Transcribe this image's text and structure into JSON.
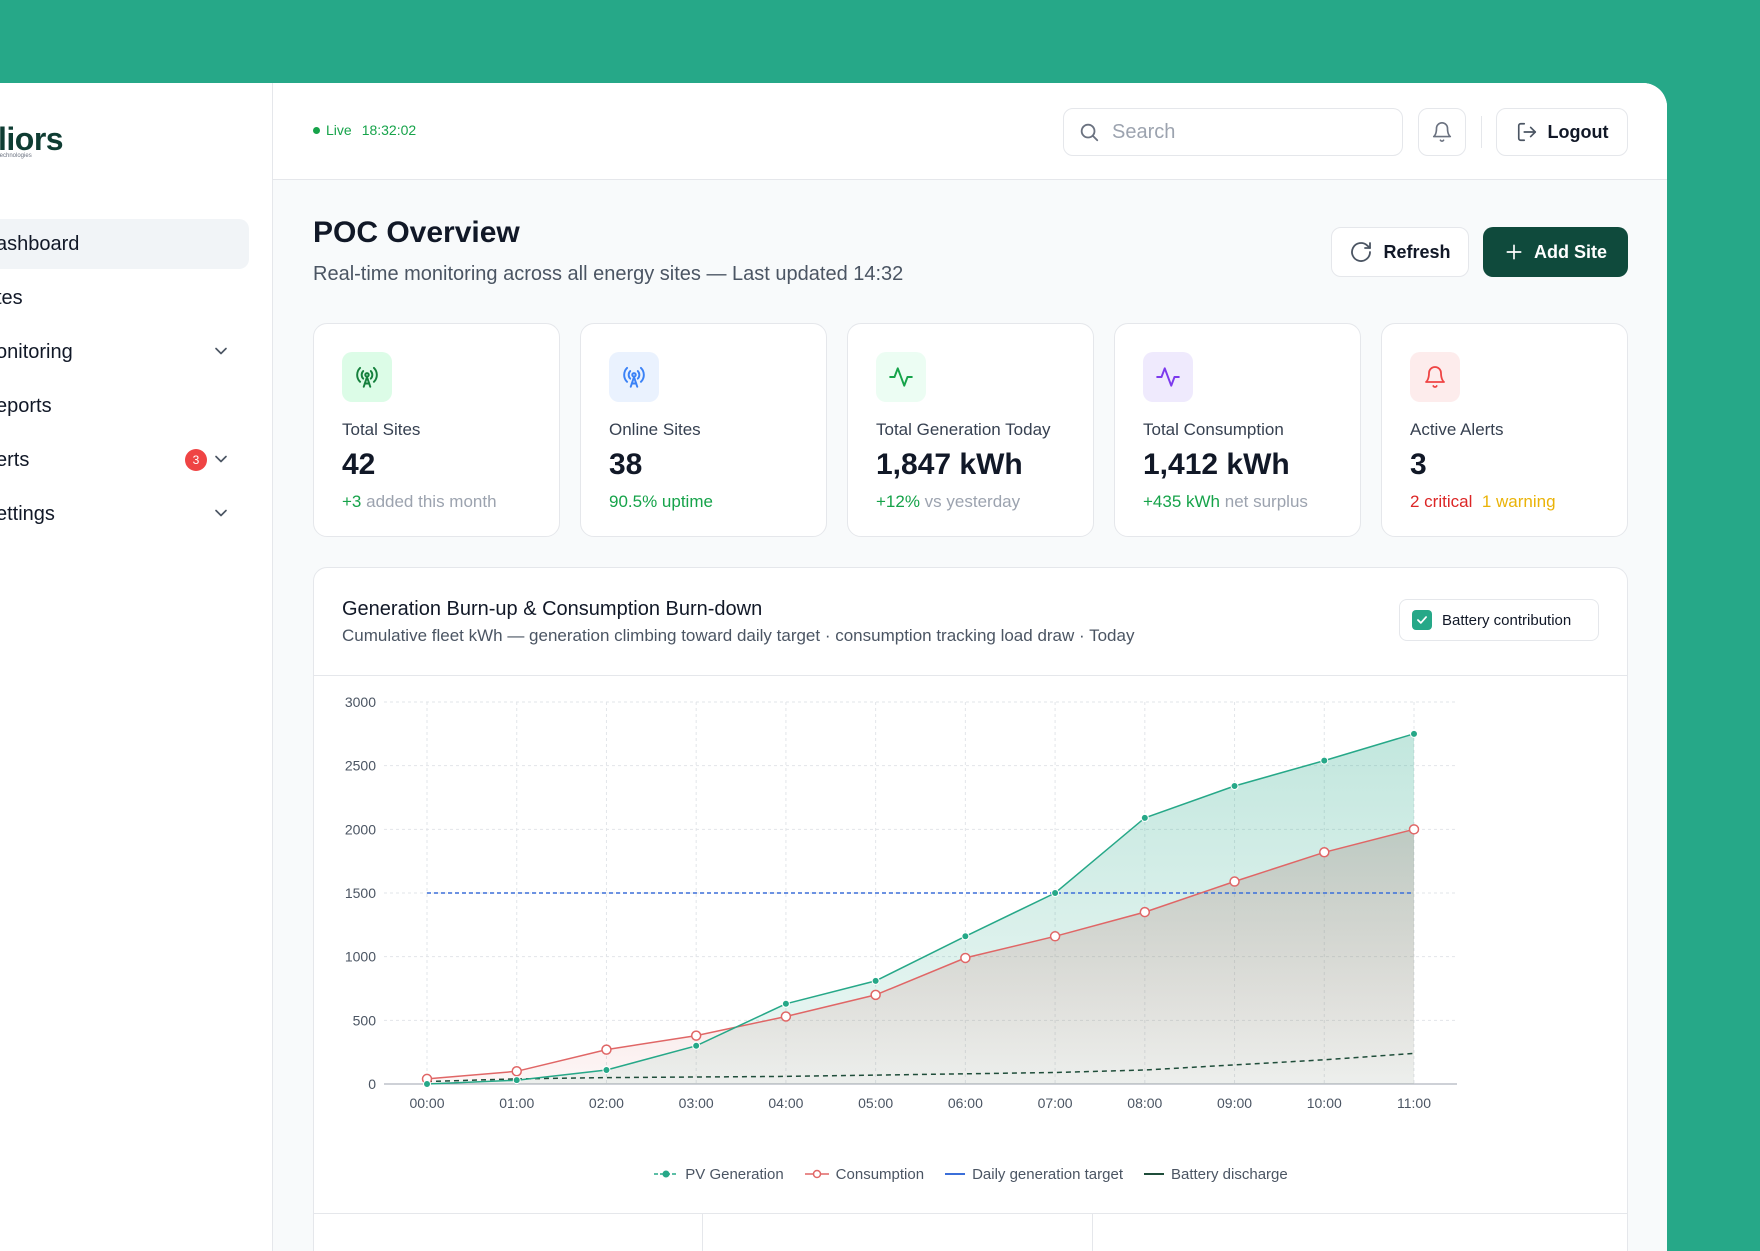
{
  "app": {
    "logo_text": "liors",
    "logo_sub": "technologies"
  },
  "sidebar": {
    "items": [
      {
        "label": "ashboard",
        "active": true
      },
      {
        "label": "tes"
      },
      {
        "label": "onitoring",
        "has_chevron": true
      },
      {
        "label": "eports"
      },
      {
        "label": "erts",
        "has_chevron": true,
        "badge": "3"
      },
      {
        "label": "ettings",
        "has_chevron": true
      }
    ]
  },
  "topbar": {
    "live_label": "Live",
    "live_time": "18:32:02",
    "search_placeholder": "Search",
    "logout_label": "Logout"
  },
  "header": {
    "title": "POC Overview",
    "subtitle": "Real-time monitoring across all energy sites — Last updated 14:32",
    "refresh_label": "Refresh",
    "add_site_label": "Add Site"
  },
  "cards": [
    {
      "label": "Total Sites",
      "value": "42",
      "note_highlight": "+3",
      "note_rest": " added this month",
      "icon": "antenna-icon",
      "icon_color": "#15803d",
      "icon_bg": "#dcfce7"
    },
    {
      "label": "Online Sites",
      "value": "38",
      "note_highlight": "90.5% uptime",
      "note_rest": "",
      "icon": "antenna-icon",
      "icon_color": "#3b82f6",
      "icon_bg": "#eaf2fe"
    },
    {
      "label": "Total Generation Today",
      "value": "1,847 kWh",
      "note_highlight": "+12%",
      "note_rest": " vs yesterday",
      "icon": "pulse-icon",
      "icon_color": "#16a34a",
      "icon_bg": "#ecfdf3"
    },
    {
      "label": "Total Consumption",
      "value": "1,412 kWh",
      "note_highlight": "+435 kWh",
      "note_rest": " net surplus",
      "icon": "pulse-icon",
      "icon_color": "#7c3aed",
      "icon_bg": "#efeafd"
    },
    {
      "label": "Active Alerts",
      "value": "3",
      "note_critical": "2 critical",
      "note_warning": "1 warning",
      "icon": "bell-icon",
      "icon_color": "#ef4444",
      "icon_bg": "#fdecec"
    }
  ],
  "chart_panel": {
    "title": "Generation Burn-up & Consumption Burn-down",
    "subtitle": "Cumulative fleet kWh — generation climbing toward daily target · consumption tracking load draw · Today",
    "battery_toggle_label": "Battery contribution",
    "battery_toggle_checked": true
  },
  "chart_data": {
    "type": "area",
    "categories": [
      "00:00",
      "01:00",
      "02:00",
      "03:00",
      "04:00",
      "05:00",
      "06:00",
      "07:00",
      "08:00",
      "09:00",
      "10:00",
      "11:00"
    ],
    "ylim": [
      0,
      3000
    ],
    "yticks": [
      0,
      500,
      1000,
      1500,
      2000,
      2500,
      3000
    ],
    "grid": true,
    "legend_position": "bottom",
    "series": [
      {
        "name": "PV Generation",
        "color": "#26a888",
        "values": [
          0,
          30,
          110,
          300,
          630,
          810,
          1160,
          1500,
          2090,
          2340,
          2540,
          2750
        ]
      },
      {
        "name": "Consumption",
        "color": "#e06666",
        "values": [
          40,
          100,
          270,
          380,
          530,
          700,
          990,
          1160,
          1350,
          1590,
          1820,
          2000
        ]
      },
      {
        "name": "Daily generation target",
        "color": "#3b6fd9",
        "values": [
          1500,
          1500,
          1500,
          1500,
          1500,
          1500,
          1500,
          1500,
          1500,
          1500,
          1500,
          1500
        ]
      },
      {
        "name": "Battery discharge",
        "color": "#1f4d3a",
        "values": [
          20,
          40,
          50,
          55,
          60,
          70,
          80,
          90,
          110,
          150,
          190,
          240
        ]
      }
    ]
  }
}
